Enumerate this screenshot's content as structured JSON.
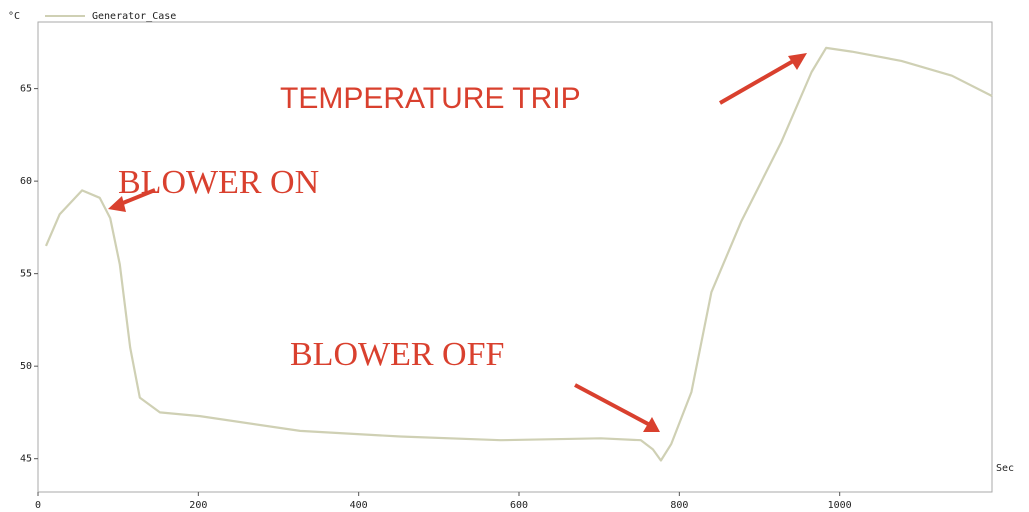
{
  "chart_data": {
    "type": "line",
    "y_unit": "°C",
    "x_unit": "Sec",
    "xlim": [
      0,
      1190
    ],
    "ylim": [
      43.2,
      68.6
    ],
    "xticks": [
      0,
      200,
      400,
      600,
      800,
      1000
    ],
    "yticks": [
      45,
      50,
      55,
      60,
      65
    ],
    "series": [
      {
        "name": "Generator_Case",
        "color": "#cfd0b4",
        "x": [
          10,
          27,
          55,
          77,
          90,
          102,
          115,
          127,
          152,
          202,
          327,
          452,
          577,
          702,
          752,
          767,
          777,
          790,
          815,
          840,
          877,
          927,
          965,
          983,
          1015,
          1077,
          1140,
          1190
        ],
        "values": [
          56.5,
          58.2,
          59.5,
          59.1,
          58.0,
          55.5,
          51.0,
          48.3,
          47.5,
          47.3,
          46.5,
          46.2,
          46.0,
          46.1,
          46.0,
          45.5,
          44.9,
          45.8,
          48.6,
          54.0,
          57.8,
          62.1,
          65.9,
          67.2,
          67.0,
          66.5,
          65.7,
          64.6
        ]
      }
    ],
    "annotations": [
      {
        "text": "BLOWER ON"
      },
      {
        "text": "BLOWER OFF"
      },
      {
        "text": "TEMPERATURE TRIP"
      }
    ]
  }
}
